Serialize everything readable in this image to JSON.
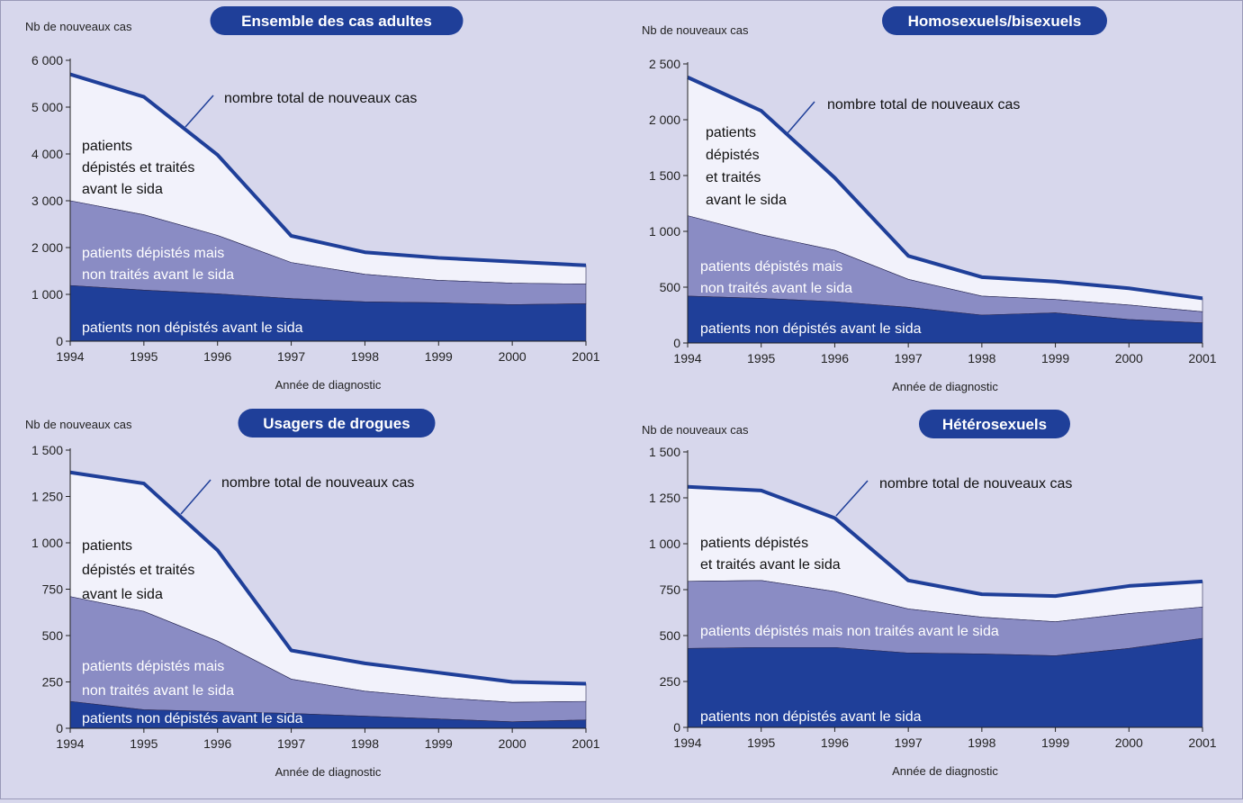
{
  "colors": {
    "background": "#d7d7ec",
    "layer_bottom": "#1f3f99",
    "layer_middle": "#8a8cc4",
    "layer_top": "#f2f2fb",
    "total_line": "#1f3f99",
    "title_pill": "#1f3f99"
  },
  "chart_data": [
    {
      "type": "area",
      "title": "Ensemble des cas adultes",
      "ylabel": "Nb de nouveaux cas",
      "xlabel": "Année de diagnostic",
      "x": [
        1994,
        1995,
        1996,
        1997,
        1998,
        1999,
        2000,
        2001
      ],
      "ylim": [
        0,
        6000
      ],
      "yticks": [
        0,
        1000,
        2000,
        3000,
        4000,
        5000,
        6000
      ],
      "ytick_labels": [
        "0",
        "1 000",
        "2 000",
        "3 000",
        "4 000",
        "5 000",
        "6 000"
      ],
      "total": [
        5700,
        5220,
        3980,
        2250,
        1900,
        1780,
        1700,
        1620
      ],
      "series": [
        {
          "name": "patients non dépistés avant le sida",
          "values": [
            1190,
            1090,
            1010,
            910,
            840,
            820,
            780,
            800
          ]
        },
        {
          "name": "patients dépistés mais non traités avant le sida",
          "values": [
            1810,
            1610,
            1250,
            770,
            590,
            480,
            460,
            420
          ]
        },
        {
          "name": "patients dépistés et traités avant le sida",
          "values": [
            2700,
            2520,
            1720,
            570,
            470,
            480,
            460,
            400
          ]
        }
      ],
      "labels": {
        "total": "nombre total de nouveaux cas",
        "top": [
          "patients",
          "dépistés et traités",
          "avant le sida"
        ],
        "middle": [
          "patients dépistés mais",
          "non traités avant le sida"
        ],
        "bottom": [
          "patients non dépistés avant le sida"
        ]
      }
    },
    {
      "type": "area",
      "title": "Homosexuels/bisexuels",
      "ylabel": "Nb de nouveaux cas",
      "xlabel": "Année de diagnostic",
      "x": [
        1994,
        1995,
        1996,
        1997,
        1998,
        1999,
        2000,
        2001
      ],
      "ylim": [
        0,
        2500
      ],
      "yticks": [
        0,
        500,
        1000,
        1500,
        2000,
        2500
      ],
      "ytick_labels": [
        "0",
        "500",
        "1 000",
        "1 500",
        "2 000",
        "2 500"
      ],
      "total": [
        2380,
        2080,
        1480,
        780,
        590,
        550,
        490,
        400
      ],
      "series": [
        {
          "name": "patients non dépistés avant le sida",
          "values": [
            420,
            400,
            370,
            320,
            250,
            270,
            210,
            180
          ]
        },
        {
          "name": "patients dépistés mais non traités avant le sida",
          "values": [
            720,
            570,
            460,
            250,
            170,
            120,
            130,
            100
          ]
        },
        {
          "name": "patients dépistés et traités avant le sida",
          "values": [
            1240,
            1110,
            650,
            210,
            170,
            160,
            150,
            120
          ]
        }
      ],
      "labels": {
        "total": "nombre total de nouveaux cas",
        "top": [
          "patients",
          "dépistés",
          "et traités",
          "avant le sida"
        ],
        "middle": [
          "patients dépistés mais",
          "non traités avant le sida"
        ],
        "bottom": [
          "patients non dépistés avant le sida"
        ]
      }
    },
    {
      "type": "area",
      "title": "Usagers de drogues",
      "ylabel": "Nb de nouveaux cas",
      "xlabel": "Année de diagnostic",
      "x": [
        1994,
        1995,
        1996,
        1997,
        1998,
        1999,
        2000,
        2001
      ],
      "ylim": [
        0,
        1500
      ],
      "yticks": [
        0,
        250,
        500,
        750,
        1000,
        1250,
        1500
      ],
      "ytick_labels": [
        "0",
        "250",
        "500",
        "750",
        "1 000",
        "1 250",
        "1 500"
      ],
      "total": [
        1380,
        1320,
        960,
        420,
        350,
        300,
        250,
        240
      ],
      "series": [
        {
          "name": "patients non dépistés avant le sida",
          "values": [
            145,
            100,
            90,
            80,
            65,
            50,
            35,
            45
          ]
        },
        {
          "name": "patients dépistés mais non traités avant le sida",
          "values": [
            565,
            530,
            380,
            185,
            135,
            115,
            105,
            100
          ]
        },
        {
          "name": "patients dépistés et traités avant le sida",
          "values": [
            670,
            690,
            490,
            155,
            150,
            135,
            110,
            95
          ]
        }
      ],
      "labels": {
        "total": "nombre total de nouveaux cas",
        "top": [
          "patients",
          "dépistés et traités",
          "avant le sida"
        ],
        "middle": [
          "patients dépistés mais",
          "non traités avant le sida"
        ],
        "bottom": [
          "patients non dépistés avant le sida"
        ]
      }
    },
    {
      "type": "area",
      "title": "Hétérosexuels",
      "ylabel": "Nb de nouveaux cas",
      "xlabel": "Année de diagnostic",
      "x": [
        1994,
        1995,
        1996,
        1997,
        1998,
        1999,
        2000,
        2001
      ],
      "ylim": [
        0,
        1500
      ],
      "yticks": [
        0,
        250,
        500,
        750,
        1000,
        1250,
        1500
      ],
      "ytick_labels": [
        "0",
        "250",
        "500",
        "750",
        "1 000",
        "1 250",
        "1 500"
      ],
      "total": [
        1310,
        1290,
        1140,
        800,
        725,
        715,
        770,
        795
      ],
      "series": [
        {
          "name": "patients non dépistés avant le sida",
          "values": [
            430,
            435,
            435,
            405,
            400,
            390,
            430,
            485
          ]
        },
        {
          "name": "patients dépistés mais non traités avant le sida",
          "values": [
            365,
            365,
            305,
            240,
            200,
            185,
            190,
            170
          ]
        },
        {
          "name": "patients dépistés et traités avant le sida",
          "values": [
            515,
            490,
            400,
            155,
            125,
            140,
            150,
            140
          ]
        }
      ],
      "labels": {
        "total": "nombre total de nouveaux cas",
        "top": [
          "patients dépistés",
          "et traités avant le sida"
        ],
        "middle": [
          "patients dépistés mais non traités avant le sida"
        ],
        "bottom": [
          "patients non dépistés avant le sida"
        ]
      }
    }
  ]
}
